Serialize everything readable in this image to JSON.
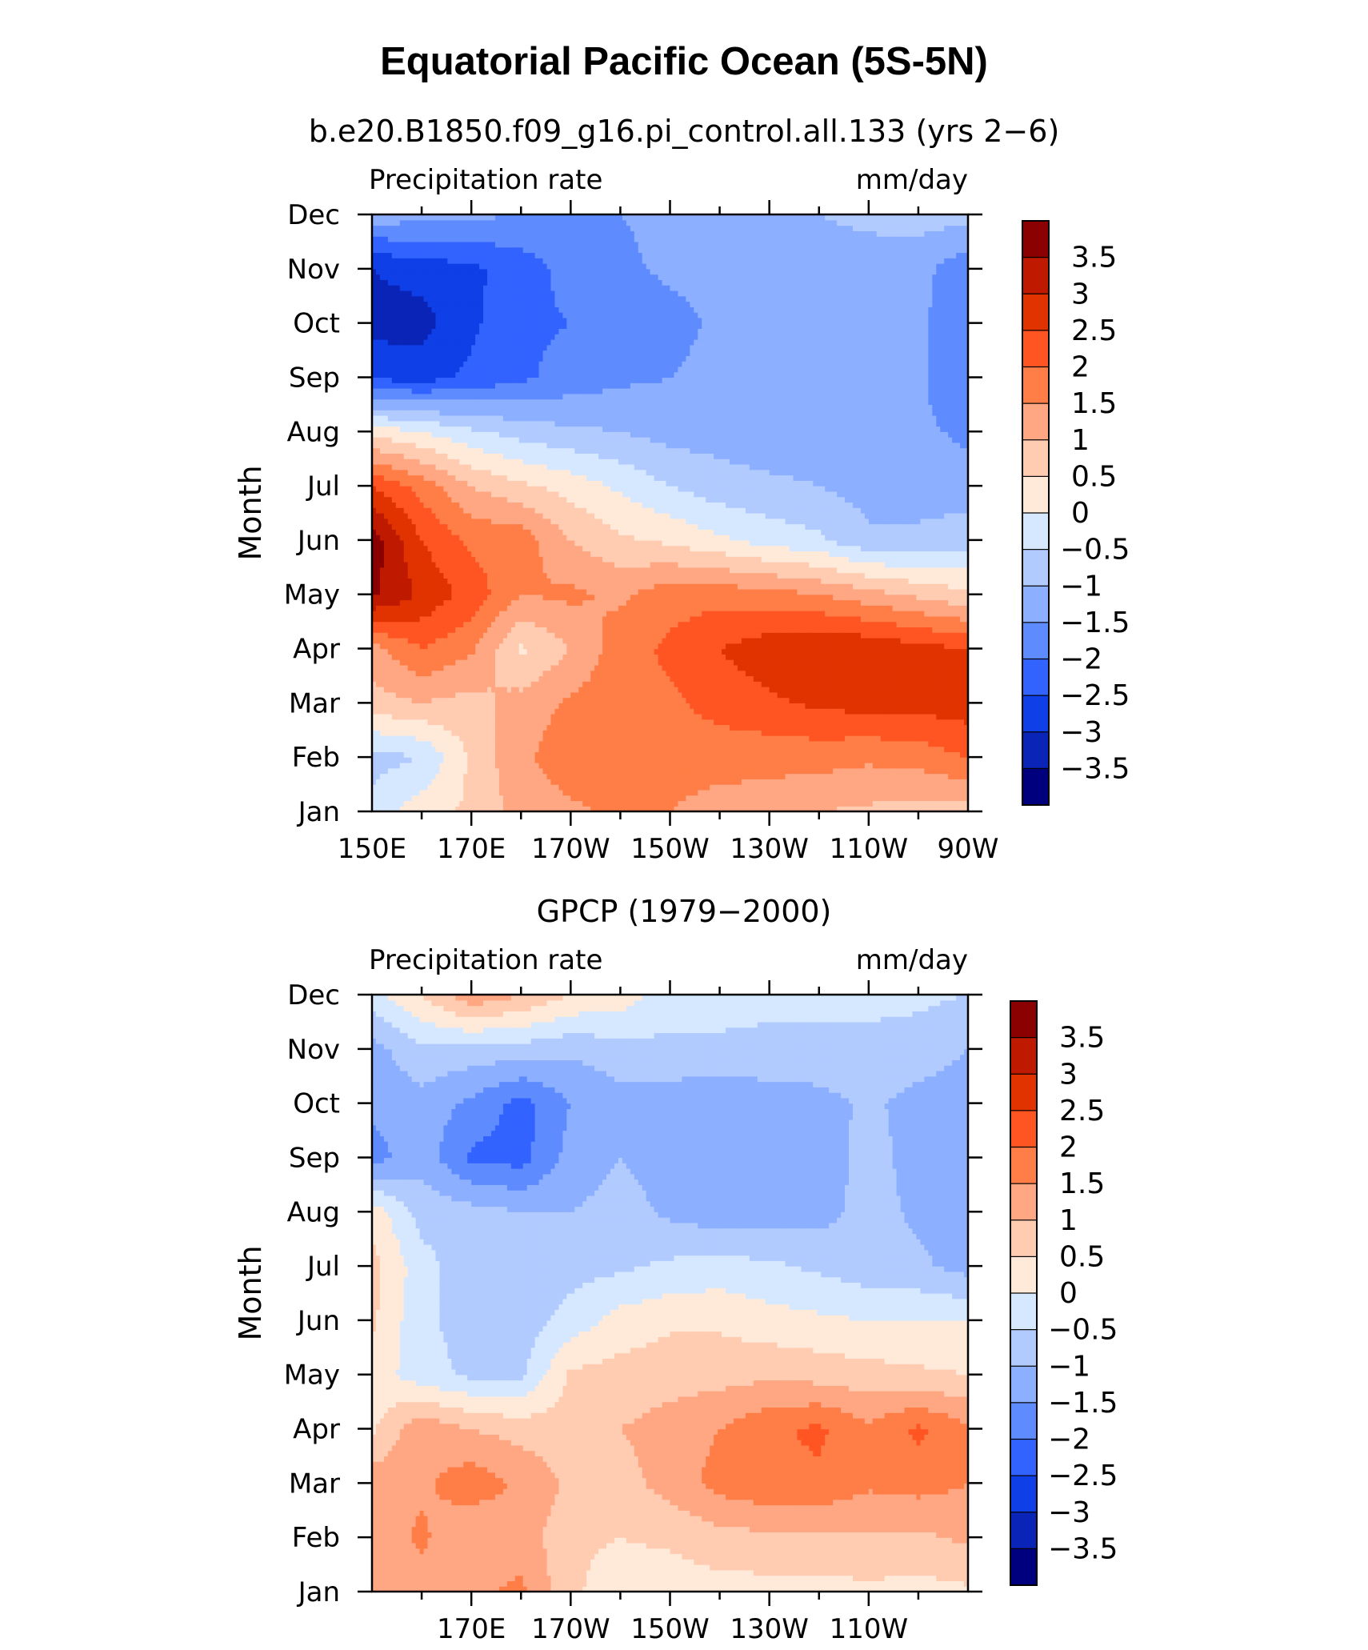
{
  "figure": {
    "title": "Equatorial Pacific Ocean (5S-5N)"
  },
  "chart_data": [
    {
      "type": "heatmap",
      "title": "b.e20.B1850.f09_g16.pi_control.all.133 (yrs 2−6)",
      "left_label": "Precipitation rate",
      "right_label": "mm/day",
      "ylabel": "Month",
      "xlabel": "",
      "x_ticks": [
        "150E",
        "170E",
        "170W",
        "150W",
        "130W",
        "110W",
        "90W"
      ],
      "y_ticks": [
        "Jan",
        "Feb",
        "Mar",
        "Apr",
        "May",
        "Jun",
        "Jul",
        "Aug",
        "Sep",
        "Oct",
        "Nov",
        "Dec"
      ],
      "xlim": [
        150,
        270
      ],
      "grid_x": [
        150,
        160,
        170,
        180,
        190,
        200,
        210,
        220,
        230,
        240,
        250,
        260,
        270
      ],
      "values": [
        [
          -0.3,
          0.3,
          0.6,
          1.2,
          1.4,
          1.6,
          1.5,
          1.3,
          1.2,
          1.0,
          0.9,
          0.8,
          0.8
        ],
        [
          -0.7,
          -0.5,
          0.6,
          1.4,
          1.8,
          1.9,
          1.7,
          1.7,
          1.7,
          1.7,
          1.6,
          1.7,
          2.0
        ],
        [
          0.8,
          1.0,
          0.8,
          1.2,
          1.6,
          1.8,
          1.9,
          2.2,
          2.4,
          2.6,
          2.7,
          2.7,
          2.8
        ],
        [
          1.3,
          2.0,
          1.6,
          0.4,
          1.0,
          1.8,
          2.1,
          2.5,
          2.8,
          3.0,
          2.9,
          2.7,
          2.5
        ],
        [
          3.6,
          2.9,
          2.3,
          1.5,
          1.6,
          1.4,
          1.8,
          1.8,
          1.7,
          1.5,
          1.2,
          0.9,
          0.6
        ],
        [
          3.8,
          2.5,
          1.9,
          1.8,
          1.0,
          0.6,
          0.4,
          0.1,
          -0.2,
          -0.4,
          -0.9,
          -0.9,
          -0.7
        ],
        [
          2.5,
          1.8,
          1.0,
          0.6,
          0.3,
          -0.1,
          -0.5,
          -0.8,
          -0.9,
          -1.0,
          -1.2,
          -1.2,
          -1.3
        ],
        [
          0.3,
          0.0,
          -0.4,
          -0.7,
          -0.9,
          -1.0,
          -1.2,
          -1.2,
          -1.3,
          -1.3,
          -1.3,
          -1.4,
          -1.6
        ],
        [
          -2.6,
          -2.7,
          -2.4,
          -2.1,
          -1.8,
          -1.6,
          -1.5,
          -1.3,
          -1.3,
          -1.3,
          -1.3,
          -1.4,
          -2.0
        ],
        [
          -3.2,
          -3.2,
          -2.6,
          -2.1,
          -2.0,
          -1.9,
          -1.7,
          -1.4,
          -1.3,
          -1.3,
          -1.3,
          -1.4,
          -1.9
        ],
        [
          -3.0,
          -2.8,
          -2.6,
          -2.3,
          -1.8,
          -1.6,
          -1.4,
          -1.3,
          -1.2,
          -1.2,
          -1.2,
          -1.3,
          -1.9
        ],
        [
          -1.2,
          -1.3,
          -1.4,
          -1.5,
          -1.5,
          -1.5,
          -1.4,
          -1.2,
          -1.1,
          -1.0,
          -0.9,
          -0.8,
          -0.8
        ]
      ]
    },
    {
      "type": "heatmap",
      "title": "GPCP (1979−2000)",
      "left_label": "Precipitation rate",
      "right_label": "mm/day",
      "ylabel": "Month",
      "xlabel": "",
      "x_ticks": [
        "170E",
        "170W",
        "150W",
        "130W",
        "110W"
      ],
      "y_ticks": [
        "Jan",
        "Feb",
        "Mar",
        "Apr",
        "May",
        "Jun",
        "Jul",
        "Aug",
        "Sep",
        "Oct",
        "Nov",
        "Dec"
      ],
      "xlim": [
        150,
        270
      ],
      "grid_x": [
        150,
        160,
        170,
        180,
        190,
        200,
        210,
        220,
        230,
        240,
        250,
        260,
        270
      ],
      "values": [
        [
          1.0,
          1.2,
          1.4,
          1.6,
          0.6,
          0.2,
          0.2,
          0.3,
          0.3,
          0.3,
          0.4,
          0.3,
          0.4
        ],
        [
          1.2,
          1.6,
          1.0,
          1.3,
          0.6,
          0.5,
          0.6,
          0.8,
          0.9,
          0.9,
          0.9,
          0.9,
          1.1
        ],
        [
          1.3,
          1.4,
          1.8,
          1.4,
          0.9,
          0.8,
          1.2,
          1.7,
          1.9,
          1.9,
          1.6,
          1.7,
          1.5
        ],
        [
          0.4,
          1.4,
          1.0,
          0.8,
          0.7,
          1.0,
          1.2,
          1.5,
          1.9,
          2.1,
          1.6,
          2.1,
          1.6
        ],
        [
          0.3,
          -0.3,
          -0.6,
          -0.6,
          0.6,
          0.7,
          0.8,
          0.8,
          0.9,
          0.8,
          0.7,
          0.6,
          0.5
        ],
        [
          0.6,
          -0.4,
          -0.7,
          -0.8,
          -0.3,
          0.2,
          0.4,
          0.4,
          0.2,
          0.1,
          0.0,
          0.0,
          0.0
        ],
        [
          0.7,
          -0.3,
          -0.8,
          -0.8,
          -0.7,
          -0.6,
          -0.4,
          -0.3,
          -0.4,
          -0.6,
          -0.8,
          -0.9,
          -1.2
        ],
        [
          0.3,
          -0.7,
          -0.8,
          -1.0,
          -1.0,
          -0.8,
          -1.1,
          -1.3,
          -1.3,
          -1.2,
          -0.8,
          -1.1,
          -1.2
        ],
        [
          -1.7,
          -1.2,
          -2.1,
          -2.2,
          -1.3,
          -1.0,
          -1.2,
          -1.3,
          -1.4,
          -1.3,
          -0.8,
          -1.2,
          -1.4
        ],
        [
          -1.4,
          -1.2,
          -1.6,
          -2.2,
          -1.5,
          -1.2,
          -1.3,
          -1.4,
          -1.3,
          -1.2,
          -0.9,
          -1.2,
          -1.3
        ],
        [
          -1.2,
          -0.6,
          -0.7,
          -0.7,
          -0.9,
          -0.7,
          -0.6,
          -0.6,
          -0.6,
          -0.6,
          -0.6,
          -0.7,
          -1.0
        ],
        [
          -0.2,
          0.5,
          1.4,
          1.0,
          0.5,
          0.3,
          -0.3,
          -0.3,
          -0.4,
          -0.4,
          -0.4,
          -0.4,
          -0.5
        ]
      ]
    }
  ],
  "colorbar": {
    "labels": [
      "3.5",
      "3",
      "2.5",
      "2",
      "1.5",
      "1",
      "0.5",
      "0",
      "−0.5",
      "−1",
      "−1.5",
      "−2",
      "−2.5",
      "−3",
      "−3.5"
    ],
    "bins": [
      {
        "lo": 3.5,
        "hi": 99,
        "color": "#8B0000"
      },
      {
        "lo": 3.0,
        "hi": 3.5,
        "color": "#BF1A00"
      },
      {
        "lo": 2.5,
        "hi": 3.0,
        "color": "#E03300"
      },
      {
        "lo": 2.0,
        "hi": 2.5,
        "color": "#FF5522"
      },
      {
        "lo": 1.5,
        "hi": 2.0,
        "color": "#FF7E47"
      },
      {
        "lo": 1.0,
        "hi": 1.5,
        "color": "#FFA682"
      },
      {
        "lo": 0.5,
        "hi": 1.0,
        "color": "#FFCCB2"
      },
      {
        "lo": 0.0,
        "hi": 0.5,
        "color": "#FFEADA"
      },
      {
        "lo": -0.5,
        "hi": 0.0,
        "color": "#D6E8FF"
      },
      {
        "lo": -1.0,
        "hi": -0.5,
        "color": "#B2CBFF"
      },
      {
        "lo": -1.5,
        "hi": -1.0,
        "color": "#8CAFFF"
      },
      {
        "lo": -2.0,
        "hi": -1.5,
        "color": "#5E8CFF"
      },
      {
        "lo": -2.5,
        "hi": -2.0,
        "color": "#3363FF"
      },
      {
        "lo": -3.0,
        "hi": -2.5,
        "color": "#0F3FE6"
      },
      {
        "lo": -3.5,
        "hi": -3.0,
        "color": "#0A24B8"
      },
      {
        "lo": -99,
        "hi": -3.5,
        "color": "#00007F"
      }
    ]
  }
}
